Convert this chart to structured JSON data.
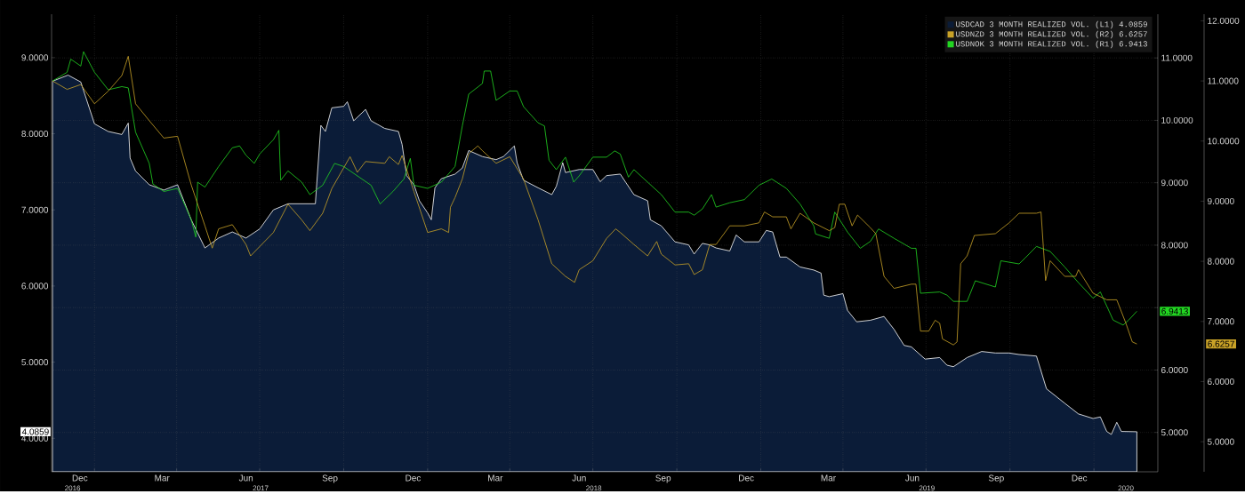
{
  "chart_data": {
    "type": "line",
    "legend": "top right",
    "grid": true,
    "xlim": [
      "2016-11-15",
      "2020-03-11"
    ],
    "xticks": [
      {
        "value": "2016-12-16",
        "label": "Dec"
      },
      {
        "value": "2017-03-16",
        "label": "Mar"
      },
      {
        "value": "2017-06-16",
        "label": "Jun"
      },
      {
        "value": "2017-09-16",
        "label": "Sep"
      },
      {
        "value": "2017-12-16",
        "label": "Dec"
      },
      {
        "value": "2018-03-16",
        "label": "Mar"
      },
      {
        "value": "2018-06-16",
        "label": "Jun"
      },
      {
        "value": "2018-09-16",
        "label": "Sep"
      },
      {
        "value": "2018-12-16",
        "label": "Dec"
      },
      {
        "value": "2019-03-16",
        "label": "Mar"
      },
      {
        "value": "2019-06-16",
        "label": "Jun"
      },
      {
        "value": "2019-09-16",
        "label": "Sep"
      },
      {
        "value": "2019-12-16",
        "label": "Dec"
      },
      {
        "value": "2017-01-01",
        "label": null
      },
      {
        "value": "2017-04-01",
        "label": null
      },
      {
        "value": "2017-07-01",
        "label": null
      },
      {
        "value": "2017-10-01",
        "label": null
      },
      {
        "value": "2018-01-01",
        "label": null
      },
      {
        "value": "2018-04-01",
        "label": null
      },
      {
        "value": "2018-07-01",
        "label": null
      },
      {
        "value": "2018-10-01",
        "label": null
      },
      {
        "value": "2019-01-01",
        "label": null
      },
      {
        "value": "2019-04-01",
        "label": null
      },
      {
        "value": "2019-07-01",
        "label": null
      },
      {
        "value": "2019-10-01",
        "label": null
      },
      {
        "value": "2020-01-01",
        "label": null
      }
    ],
    "x2lim": [
      "2016-11-15",
      "2020-03-11"
    ],
    "x2ticks": [
      {
        "value": "2016-12-08",
        "label": "2016"
      },
      {
        "value": "2017-07-02",
        "label": "2017"
      },
      {
        "value": "2018-07-02",
        "label": "2018"
      },
      {
        "value": "2019-07-02",
        "label": "2019"
      },
      {
        "value": "2020-02-05",
        "label": "2020"
      }
    ],
    "ylim": [
      3.56,
      9.57
    ],
    "yticks": [
      {
        "value": 4.0859,
        "label": "4.0859"
      },
      {
        "value": 4,
        "label": "4.0000"
      },
      {
        "value": 5,
        "label": "5.0000"
      },
      {
        "value": 6,
        "label": "6.0000"
      },
      {
        "value": 7,
        "label": "7.0000"
      },
      {
        "value": 8,
        "label": "8.0000"
      },
      {
        "value": 9,
        "label": "9.0000"
      }
    ],
    "y2lim": [
      4.37,
      11.7
    ],
    "y2ticks": [
      {
        "value": 6.9413,
        "label": "6.9413"
      },
      {
        "value": 5,
        "label": "5.0000"
      },
      {
        "value": 6,
        "label": "6.0000"
      },
      {
        "value": 7,
        "label": null
      },
      {
        "value": 8,
        "label": "8.0000"
      },
      {
        "value": 9,
        "label": "9.0000"
      },
      {
        "value": 10,
        "label": "10.0000"
      },
      {
        "value": 11,
        "label": "11.0000"
      }
    ],
    "y3lim": [
      4.5,
      12.11
    ],
    "y3ticks": [
      {
        "value": 6.6257,
        "label": "6.6257"
      },
      {
        "value": 5,
        "label": "5.0000"
      },
      {
        "value": 6,
        "label": "6.0000"
      },
      {
        "value": 7,
        "label": "7.0000"
      },
      {
        "value": 8,
        "label": "8.0000"
      },
      {
        "value": 9,
        "label": "9.0000"
      },
      {
        "value": 10,
        "label": "10.0000"
      },
      {
        "value": 11,
        "label": "11.0000"
      },
      {
        "value": 12,
        "label": "12.0000"
      }
    ],
    "series": [
      {
        "name": "USDCAD 3 MONTH REALIZED VOL. (L1) 4.0859",
        "type": "area",
        "axis": "y",
        "color": "#0b1c38",
        "x": [
          "2016-11-16",
          "2016-12-03",
          "2016-12-17",
          "2017-01-01",
          "2017-01-16",
          "2017-01-31",
          "2017-02-07",
          "2017-02-09",
          "2017-02-15",
          "2017-03-02",
          "2017-03-18",
          "2017-04-02",
          "2017-04-17",
          "2017-05-02",
          "2017-05-17",
          "2017-06-01",
          "2017-06-16",
          "2017-07-01",
          "2017-07-16",
          "2017-08-01",
          "2017-08-16",
          "2017-08-31",
          "2017-09-06",
          "2017-09-11",
          "2017-09-18",
          "2017-10-01",
          "2017-10-05",
          "2017-10-12",
          "2017-10-25",
          "2017-10-31",
          "2017-11-15",
          "2017-11-30",
          "2017-12-04",
          "2017-12-09",
          "2017-12-17",
          "2017-12-23",
          "2018-01-01",
          "2018-01-05",
          "2018-01-09",
          "2018-01-16",
          "2018-01-31",
          "2018-02-08",
          "2018-02-15",
          "2018-03-02",
          "2018-03-17",
          "2018-03-25",
          "2018-04-06",
          "2018-04-09",
          "2018-04-16",
          "2018-05-02",
          "2018-05-17",
          "2018-05-22",
          "2018-05-29",
          "2018-06-01",
          "2018-06-16",
          "2018-07-01",
          "2018-07-09",
          "2018-07-16",
          "2018-07-31",
          "2018-08-15",
          "2018-08-30",
          "2018-09-02",
          "2018-09-14",
          "2018-09-29",
          "2018-10-14",
          "2018-10-20",
          "2018-10-29",
          "2018-11-06",
          "2018-11-13",
          "2018-11-28",
          "2018-12-05",
          "2018-12-14",
          "2018-12-30",
          "2019-01-07",
          "2019-01-14",
          "2019-01-22",
          "2019-01-29",
          "2019-02-13",
          "2019-02-28",
          "2019-03-08",
          "2019-03-11",
          "2019-03-17",
          "2019-04-01",
          "2019-04-06",
          "2019-04-16",
          "2019-05-01",
          "2019-05-16",
          "2019-05-27",
          "2019-06-07",
          "2019-06-15",
          "2019-06-30",
          "2019-07-16",
          "2019-07-24",
          "2019-07-31",
          "2019-08-15",
          "2019-08-31",
          "2019-09-15",
          "2019-09-30",
          "2019-10-11",
          "2019-10-30",
          "2019-11-10",
          "2019-11-30",
          "2019-12-15",
          "2019-12-31",
          "2020-01-08",
          "2020-01-15",
          "2020-01-20",
          "2020-01-26",
          "2020-01-31",
          "2020-02-17"
        ],
        "values": [
          8.69,
          8.77,
          8.68,
          8.13,
          8.03,
          7.99,
          8.14,
          7.68,
          7.51,
          7.33,
          7.26,
          7.33,
          6.87,
          6.5,
          6.63,
          6.71,
          6.63,
          6.75,
          7.0,
          7.08,
          7.08,
          7.08,
          8.11,
          8.03,
          8.34,
          8.36,
          8.42,
          8.17,
          8.32,
          8.17,
          8.07,
          8.03,
          7.86,
          7.45,
          7.33,
          7.12,
          6.96,
          6.87,
          7.29,
          7.41,
          7.47,
          7.55,
          7.78,
          7.7,
          7.66,
          7.7,
          7.84,
          7.62,
          7.39,
          7.29,
          7.2,
          7.31,
          7.62,
          7.49,
          7.53,
          7.53,
          7.37,
          7.45,
          7.47,
          7.2,
          7.12,
          6.87,
          6.79,
          6.58,
          6.54,
          6.42,
          6.56,
          6.54,
          6.5,
          6.46,
          6.67,
          6.58,
          6.58,
          6.73,
          6.71,
          6.38,
          6.38,
          6.25,
          6.21,
          6.17,
          5.88,
          5.86,
          5.9,
          5.68,
          5.53,
          5.55,
          5.6,
          5.43,
          5.22,
          5.2,
          5.04,
          5.06,
          4.96,
          4.94,
          5.06,
          5.14,
          5.12,
          5.12,
          5.1,
          5.08,
          4.65,
          4.46,
          4.32,
          4.26,
          4.28,
          4.09,
          4.05,
          4.21,
          4.09,
          4.0859
        ]
      },
      {
        "name": "USDNZD 3 MONTH REALIZED VOL. (R2) 6.6257",
        "axis": "y3",
        "color": "#c9a227",
        "x": [
          "2016-11-16",
          "2016-12-02",
          "2016-12-17",
          "2017-01-01",
          "2017-01-16",
          "2017-01-31",
          "2017-02-07",
          "2017-02-15",
          "2017-03-02",
          "2017-03-18",
          "2017-04-02",
          "2017-04-17",
          "2017-05-02",
          "2017-05-10",
          "2017-05-17",
          "2017-06-01",
          "2017-06-16",
          "2017-06-21",
          "2017-07-16",
          "2017-08-01",
          "2017-08-16",
          "2017-08-25",
          "2017-09-08",
          "2017-09-18",
          "2017-10-08",
          "2017-10-16",
          "2017-10-25",
          "2017-11-15",
          "2017-11-20",
          "2017-11-30",
          "2017-12-04",
          "2017-12-17",
          "2018-01-01",
          "2018-01-16",
          "2018-01-24",
          "2018-01-26",
          "2018-01-31",
          "2018-02-08",
          "2018-02-15",
          "2018-02-25",
          "2018-03-02",
          "2018-03-17",
          "2018-04-01",
          "2018-04-16",
          "2018-05-02",
          "2018-05-17",
          "2018-06-01",
          "2018-06-11",
          "2018-06-16",
          "2018-07-01",
          "2018-07-16",
          "2018-07-26",
          "2018-07-31",
          "2018-08-15",
          "2018-08-30",
          "2018-09-09",
          "2018-09-14",
          "2018-09-29",
          "2018-10-14",
          "2018-10-20",
          "2018-10-29",
          "2018-11-06",
          "2018-11-13",
          "2018-11-28",
          "2018-12-14",
          "2018-12-30",
          "2019-01-05",
          "2019-01-14",
          "2019-01-29",
          "2019-02-03",
          "2019-02-13",
          "2019-02-28",
          "2019-03-17",
          "2019-03-23",
          "2019-03-28",
          "2019-04-03",
          "2019-04-11",
          "2019-04-17",
          "2019-05-01",
          "2019-05-07",
          "2019-05-16",
          "2019-05-27",
          "2019-06-15",
          "2019-06-20",
          "2019-06-25",
          "2019-07-04",
          "2019-07-11",
          "2019-07-16",
          "2019-07-19",
          "2019-07-31",
          "2019-08-04",
          "2019-08-08",
          "2019-08-15",
          "2019-08-23",
          "2019-09-15",
          "2019-09-30",
          "2019-10-11",
          "2019-10-30",
          "2019-11-04",
          "2019-11-09",
          "2019-11-14",
          "2019-11-30",
          "2019-12-12",
          "2019-12-15",
          "2019-12-31",
          "2020-01-15",
          "2020-01-26",
          "2020-02-05",
          "2020-02-12",
          "2020-02-17"
        ],
        "values": [
          11.0,
          10.86,
          10.94,
          10.62,
          10.83,
          11.09,
          11.41,
          10.62,
          10.34,
          10.05,
          10.08,
          9.27,
          8.59,
          8.22,
          8.54,
          8.61,
          8.28,
          8.09,
          8.48,
          8.95,
          8.69,
          8.51,
          8.8,
          9.21,
          9.74,
          9.48,
          9.66,
          9.63,
          9.74,
          9.61,
          9.76,
          9.16,
          8.48,
          8.54,
          8.48,
          8.9,
          9.06,
          9.37,
          9.79,
          9.92,
          9.84,
          9.63,
          9.74,
          9.37,
          8.69,
          7.96,
          7.75,
          7.65,
          7.86,
          8.01,
          8.38,
          8.54,
          8.48,
          8.28,
          8.09,
          8.33,
          8.12,
          7.94,
          7.96,
          7.78,
          7.86,
          8.28,
          8.28,
          8.59,
          8.59,
          8.64,
          8.82,
          8.74,
          8.74,
          8.54,
          8.8,
          8.64,
          8.51,
          8.56,
          8.95,
          8.95,
          8.59,
          8.77,
          8.56,
          8.46,
          7.75,
          7.55,
          7.62,
          7.62,
          6.84,
          6.84,
          7.02,
          6.97,
          6.71,
          6.61,
          6.66,
          7.96,
          8.09,
          8.43,
          8.46,
          8.64,
          8.8,
          8.8,
          8.82,
          7.68,
          8.01,
          7.75,
          7.75,
          7.86,
          7.47,
          7.36,
          7.36,
          6.97,
          6.66,
          6.6257
        ]
      },
      {
        "name": "USDNOK 3 MONTH REALIZED VOL. (R1) 6.9413",
        "axis": "y2",
        "color": "#22d622",
        "x": [
          "2016-11-16",
          "2016-12-02",
          "2016-12-06",
          "2016-12-17",
          "2016-12-20",
          "2017-01-01",
          "2017-01-16",
          "2017-01-31",
          "2017-02-07",
          "2017-02-15",
          "2017-03-02",
          "2017-03-06",
          "2017-03-18",
          "2017-04-02",
          "2017-04-17",
          "2017-04-22",
          "2017-04-24",
          "2017-05-02",
          "2017-05-17",
          "2017-06-01",
          "2017-06-09",
          "2017-06-16",
          "2017-06-25",
          "2017-07-01",
          "2017-07-16",
          "2017-07-22",
          "2017-07-24",
          "2017-08-01",
          "2017-08-16",
          "2017-08-25",
          "2017-09-08",
          "2017-09-21",
          "2017-10-01",
          "2017-10-16",
          "2017-10-31",
          "2017-11-10",
          "2017-11-24",
          "2017-12-06",
          "2017-12-13",
          "2017-12-17",
          "2018-01-01",
          "2018-01-16",
          "2018-01-31",
          "2018-02-08",
          "2018-02-15",
          "2018-03-02",
          "2018-03-04",
          "2018-03-11",
          "2018-03-17",
          "2018-04-01",
          "2018-04-09",
          "2018-04-16",
          "2018-05-02",
          "2018-05-09",
          "2018-05-14",
          "2018-05-22",
          "2018-06-01",
          "2018-06-10",
          "2018-06-16",
          "2018-07-01",
          "2018-07-16",
          "2018-07-25",
          "2018-07-31",
          "2018-08-09",
          "2018-08-15",
          "2018-08-30",
          "2018-09-14",
          "2018-09-29",
          "2018-10-14",
          "2018-10-20",
          "2018-10-29",
          "2018-11-08",
          "2018-11-13",
          "2018-11-28",
          "2018-12-14",
          "2018-12-30",
          "2019-01-13",
          "2019-01-29",
          "2019-02-13",
          "2019-02-28",
          "2019-03-02",
          "2019-03-17",
          "2019-03-23",
          "2019-04-06",
          "2019-04-20",
          "2019-05-01",
          "2019-05-10",
          "2019-05-27",
          "2019-06-15",
          "2019-06-20",
          "2019-06-25",
          "2019-07-16",
          "2019-07-24",
          "2019-07-31",
          "2019-08-15",
          "2019-08-24",
          "2019-09-15",
          "2019-09-21",
          "2019-10-11",
          "2019-10-18",
          "2019-10-30",
          "2019-11-14",
          "2019-11-30",
          "2019-12-15",
          "2019-12-31",
          "2020-01-08",
          "2020-01-22",
          "2020-02-02",
          "2020-02-08",
          "2020-02-17"
        ],
        "values": [
          10.63,
          10.77,
          10.98,
          10.87,
          11.1,
          10.77,
          10.49,
          10.54,
          10.52,
          9.81,
          9.31,
          8.98,
          8.86,
          8.91,
          8.41,
          8.13,
          9.01,
          8.93,
          9.26,
          9.56,
          9.59,
          9.44,
          9.31,
          9.46,
          9.69,
          9.84,
          9.04,
          9.19,
          9.01,
          8.81,
          8.96,
          9.31,
          9.26,
          9.11,
          8.96,
          8.66,
          8.86,
          9.06,
          9.39,
          8.96,
          8.91,
          9.01,
          9.26,
          9.91,
          10.42,
          10.59,
          10.79,
          10.79,
          10.32,
          10.47,
          10.47,
          10.22,
          9.96,
          9.91,
          9.36,
          9.21,
          9.41,
          9.01,
          9.11,
          9.41,
          9.41,
          9.51,
          9.46,
          9.09,
          9.21,
          9.01,
          8.81,
          8.53,
          8.53,
          8.48,
          8.58,
          8.81,
          8.61,
          8.68,
          8.73,
          8.96,
          9.06,
          8.91,
          8.66,
          8.31,
          8.18,
          8.11,
          8.53,
          8.21,
          7.95,
          8.06,
          8.26,
          8.11,
          7.95,
          7.95,
          7.23,
          7.25,
          7.2,
          7.1,
          7.1,
          7.43,
          7.33,
          7.75,
          7.7,
          7.8,
          7.98,
          7.9,
          7.65,
          7.4,
          7.15,
          7.25,
          6.8,
          6.72,
          6.8,
          6.9413
        ]
      }
    ]
  }
}
